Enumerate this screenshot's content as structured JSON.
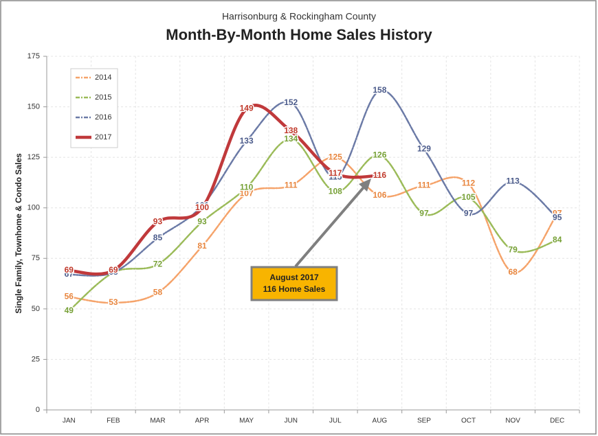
{
  "chart_data": {
    "type": "line",
    "subtitle": "Harrisonburg & Rockingham County",
    "title": "Month-By-Month Home Sales History",
    "y_label": "Single Family, Townhome & Condo Sales",
    "categories": [
      "JAN",
      "FEB",
      "MAR",
      "APR",
      "MAY",
      "JUN",
      "JUL",
      "AUG",
      "SEP",
      "OCT",
      "NOV",
      "DEC"
    ],
    "series": [
      {
        "name": "2014",
        "color": "#f5a36a",
        "label_color": "#e8853d",
        "values": [
          56,
          53,
          58,
          81,
          107,
          111,
          125,
          106,
          111,
          112,
          68,
          97
        ]
      },
      {
        "name": "2015",
        "color": "#9bbb59",
        "label_color": "#76a035",
        "values": [
          49,
          68,
          72,
          93,
          110,
          134,
          108,
          126,
          97,
          105,
          79,
          84
        ]
      },
      {
        "name": "2016",
        "color": "#6b7aa6",
        "label_color": "#4a5a8a",
        "values": [
          67,
          68,
          85,
          101,
          133,
          152,
          115,
          158,
          129,
          97,
          113,
          95
        ]
      },
      {
        "name": "2017",
        "color": "#c0393b",
        "label_color": "#c0392b",
        "values": [
          69,
          69,
          93,
          100,
          149,
          138,
          117,
          116,
          null,
          null,
          null,
          null
        ]
      }
    ],
    "ylim": [
      0,
      175
    ],
    "yticks": [
      0,
      25,
      50,
      75,
      100,
      125,
      150,
      175
    ],
    "grid": true,
    "legend": "upper left",
    "annotation": [
      "August 2017",
      "116 Home Sales"
    ]
  }
}
